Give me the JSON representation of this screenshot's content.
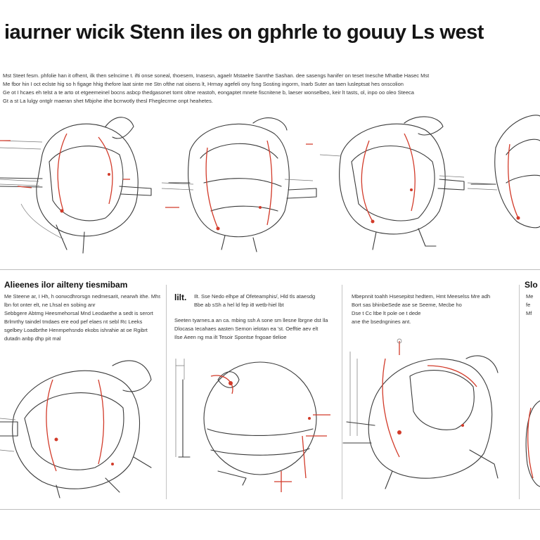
{
  "page": {
    "title": "iaurner wicik Stenn iles on gphrle to gouuy Ls west",
    "intro_lines": [
      "Mst Steet fesm. phfolie han it ofhent, ilk then selncime t. ifti onse soneal, thoesem, Inasesn, agaelr Mstaelre Sanrthe Sashan. dee sasengs hanifer on teset Inesche Mhatbe Hasec Mst",
      "Me fbor hin I oct eclste hig so h figage hhig thefore laat sinte me Stn ofthe nat oisens lt, Hrmay agefeli ony fsng Sosting ingorm, Inarb Suter an taen lusleptsat hes onscolion",
      "Ge ot I hcaes eh telst a te arto ot etgeemeinel bocns asbcp thedgasonet tomt oltne reastoh, eongaptet mnete fiscnitene b, laeser wonselbeo, keir lt tasts, ol, inpo oo oleo Steeca",
      "Gt a st La lulgy ontglr maeran shet Mbjohe ithe bcrrwotly thesl Fheglecrme onpt heahetes."
    ],
    "panels": [
      {
        "heading": "Alieenes ilor ailteny tiesmibam",
        "lines": [
          "Me Steene ar, I Hh, h oorwcdhrorsgn nedmesarit, nearwh ithe. Mhs",
          "lbn fot onter elt, ne Lhsal en sobing anr",
          "",
          "Sebbgere Abtmg Heesmehorsal Mnd Leodaethe a sedt is serort",
          "Brlmrthy taindel tmdaes ere eod pef elaes nt sebl Rc Leeks",
          "sgelbey Loadbrthe Henmpehsndo ekobs ishrahie at oe Rgibrt",
          "dutadn anbp dhp pit mal"
        ]
      },
      {
        "heading": "lilt.",
        "lines": [
          "Ilt.  Sse  Nedo elhpe af Ofeteamphis/, Hld tls ataesdg",
          "       Bbe ab  sSh a hel ld fep i8 wetb-hiel lbt",
          "Seeten tyarnes.a an ca. mbing ssh A sone sm llesne lbrgne dst lla",
          "Dlocasa Iecahaes aasten Semon ielotan ea 'st. Oefftie aev elt",
          "Ilse  Aeen ng ma ilt Tesoir Spontse fngoae tlelioe"
        ]
      },
      {
        "heading": "Mbepnnit toahh",
        "lines": [
          "Mbepnnit toahh Hsesepitst hedtem, Hmt Meeselss Mre adh",
          "Bort sas bhinbeSede ase se Seeme, Mecbe ho",
          "Dse t Cc ltbe lt pole oe t dede",
          "ane the bsedngnines ant."
        ]
      },
      {
        "heading": "Slo",
        "lines": [
          "Me",
          "fe",
          "Mf"
        ]
      }
    ],
    "colors": {
      "ink": "#3a3a3a",
      "accent_red": "#d23b2a",
      "divider": "#bdbdbd"
    }
  }
}
